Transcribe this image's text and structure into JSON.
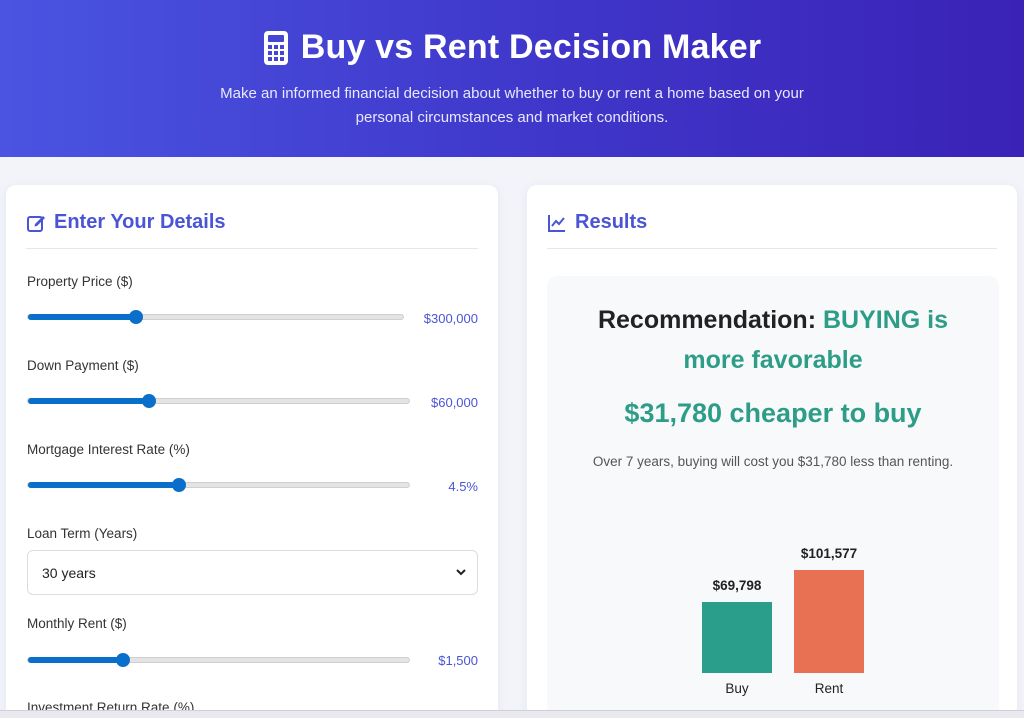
{
  "header": {
    "icon": "calculator-icon",
    "title": "Buy vs Rent Decision Maker",
    "subtitle": "Make an informed financial decision about whether to buy or rent a home based on your personal circumstances and market conditions."
  },
  "details": {
    "title": "Enter Your Details",
    "icon": "edit-icon",
    "fields": [
      {
        "label": "Property Price ($)",
        "value": "$300,000",
        "fraction": 0.287
      },
      {
        "label": "Down Payment ($)",
        "value": "$60,000",
        "fraction": 0.316
      },
      {
        "label": "Mortgage Interest Rate (%)",
        "value": "4.5%",
        "fraction": 0.395
      },
      {
        "label": "Monthly Rent ($)",
        "value": "$1,500",
        "fraction": 0.248
      }
    ],
    "loan_term": {
      "label": "Loan Term (Years)",
      "selected": "30 years"
    },
    "next_label": "Investment Return Rate (%)"
  },
  "results": {
    "title": "Results",
    "icon": "chart-line-icon",
    "recommendation_prefix": "Recommendation:",
    "recommendation_highlight_1": "BUYING is",
    "recommendation_highlight_2": "more favorable",
    "amount": "$31,780 cheaper to buy",
    "summary": "Over 7 years, buying will cost you $31,780 less than renting."
  },
  "colors": {
    "accent": "#4a55d6",
    "slider": "#0a6fcb",
    "buy": "#2a9d8b",
    "rent": "#e87153",
    "positive": "#2e9d88"
  },
  "chart_data": {
    "type": "bar",
    "categories": [
      "Buy",
      "Rent"
    ],
    "values": [
      69798,
      101577
    ],
    "data_labels": [
      "$69,798",
      "$101,577"
    ],
    "ylim": [
      0,
      101577
    ]
  }
}
